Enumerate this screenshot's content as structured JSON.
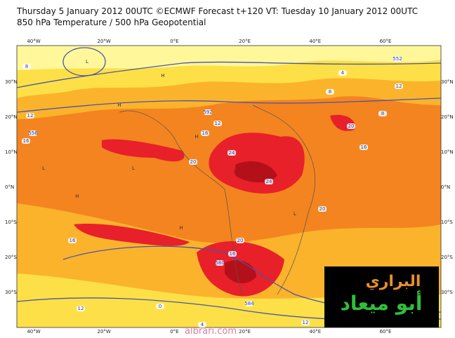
{
  "header": {
    "line1": "Thursday 5 January 2012 00UTC ©ECMWF Forecast t+120 VT: Tuesday 10 January 2012 00UTC",
    "line2": "850 hPa Temperature / 500 hPa Geopotential"
  },
  "longitude_labels": [
    "40°W",
    "20°W",
    "0°E",
    "20°E",
    "40°E",
    "60°E"
  ],
  "latitude_labels": [
    "30°N",
    "20°N",
    "10°N",
    "0°N",
    "10°S",
    "20°S",
    "30°S"
  ],
  "contour_labels": [
    "8",
    "12",
    "16",
    "556",
    "592",
    "12",
    "16",
    "20",
    "24",
    "24",
    "20",
    "16",
    "20",
    "4",
    "8",
    "12",
    "20",
    "16",
    "16",
    "12",
    "580",
    "8",
    "12",
    "4",
    "584",
    "0",
    "552"
  ],
  "pressure_marks": [
    "L",
    "L",
    "H",
    "L",
    "H",
    "H",
    "L",
    "H",
    "L",
    "H"
  ],
  "logo": {
    "line1": "البراري",
    "line2": "أبو ميعاد"
  },
  "footer": "albrari.com"
}
